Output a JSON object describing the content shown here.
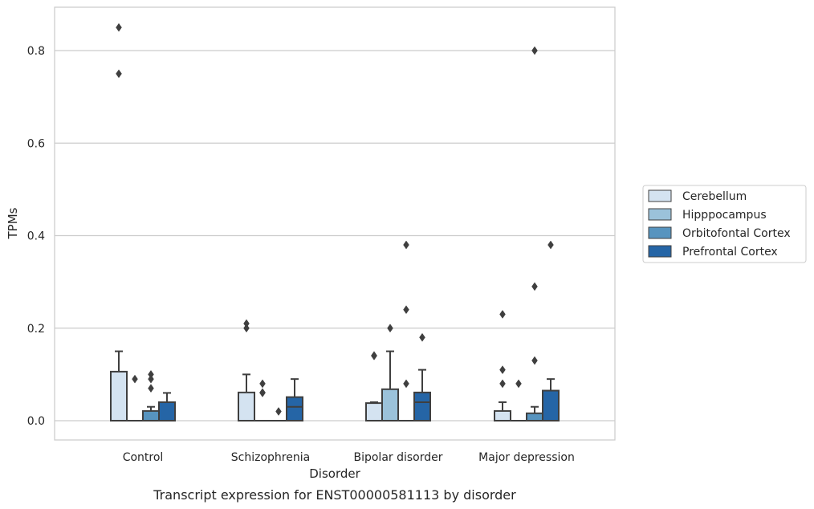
{
  "chart_data": {
    "type": "box",
    "title": "",
    "caption": "Transcript expression for ENST00000581113 by disorder",
    "xlabel": "Disorder",
    "ylabel": "TPMs",
    "ylim": [
      -0.04,
      0.895
    ],
    "yticks": [
      0.0,
      0.2,
      0.4,
      0.6,
      0.8
    ],
    "ytick_labels": [
      "0.0",
      "0.2",
      "0.4",
      "0.6",
      "0.8"
    ],
    "grid": true,
    "legend_position": "right",
    "categories": [
      "Control",
      "Schizophrenia",
      "Bipolar disorder",
      "Major depression"
    ],
    "series": [
      {
        "name": "Cerebellum",
        "color": "#d4e3f1",
        "boxes": [
          {
            "q1": 0.0,
            "median": 0.0,
            "q3": 0.106,
            "whisker_low": 0.0,
            "whisker_high": 0.15,
            "outliers": [
              0.85,
              0.75
            ]
          },
          {
            "q1": 0.0,
            "median": 0.0,
            "q3": 0.061,
            "whisker_low": 0.0,
            "whisker_high": 0.1,
            "outliers": [
              0.21,
              0.2
            ]
          },
          {
            "q1": 0.0,
            "median": 0.0,
            "q3": 0.038,
            "whisker_low": 0.0,
            "whisker_high": 0.04,
            "outliers": [
              0.14,
              0.141
            ]
          },
          {
            "q1": 0.0,
            "median": 0.0,
            "q3": 0.021,
            "whisker_low": 0.0,
            "whisker_high": 0.04,
            "outliers": [
              0.23,
              0.11,
              0.08
            ]
          }
        ]
      },
      {
        "name": "Hipppocampus",
        "color": "#9bc2da",
        "boxes": [
          {
            "q1": 0.0,
            "median": 0.0,
            "q3": 0.0,
            "whisker_low": 0.0,
            "whisker_high": 0.0,
            "outliers": [
              0.09
            ]
          },
          {
            "q1": 0.0,
            "median": 0.0,
            "q3": 0.0,
            "whisker_low": 0.0,
            "whisker_high": 0.0,
            "outliers": [
              0.08,
              0.06,
              0.061
            ]
          },
          {
            "q1": 0.0,
            "median": 0.0,
            "q3": 0.068,
            "whisker_low": 0.0,
            "whisker_high": 0.15,
            "outliers": [
              0.2
            ]
          },
          {
            "q1": 0.0,
            "median": 0.0,
            "q3": 0.0,
            "whisker_low": 0.0,
            "whisker_high": 0.0,
            "outliers": [
              0.08
            ]
          }
        ]
      },
      {
        "name": "Orbitofontal Cortex",
        "color": "#5794bf",
        "boxes": [
          {
            "q1": 0.0,
            "median": 0.0,
            "q3": 0.021,
            "whisker_low": 0.0,
            "whisker_high": 0.03,
            "outliers": [
              0.1,
              0.09,
              0.07
            ]
          },
          {
            "q1": 0.0,
            "median": 0.0,
            "q3": 0.0,
            "whisker_low": 0.0,
            "whisker_high": 0.0,
            "outliers": [
              0.02
            ]
          },
          {
            "q1": 0.0,
            "median": 0.0,
            "q3": 0.0,
            "whisker_low": 0.0,
            "whisker_high": 0.0,
            "outliers": [
              0.38,
              0.24,
              0.08
            ]
          },
          {
            "q1": 0.0,
            "median": 0.0,
            "q3": 0.016,
            "whisker_low": 0.0,
            "whisker_high": 0.03,
            "outliers": [
              0.8,
              0.29,
              0.13
            ]
          }
        ]
      },
      {
        "name": "Prefrontal Cortex",
        "color": "#2565a6",
        "boxes": [
          {
            "q1": 0.0,
            "median": 0.0,
            "q3": 0.04,
            "whisker_low": 0.0,
            "whisker_high": 0.06,
            "outliers": []
          },
          {
            "q1": 0.0,
            "median": 0.03,
            "q3": 0.051,
            "whisker_low": 0.0,
            "whisker_high": 0.09,
            "outliers": []
          },
          {
            "q1": 0.0,
            "median": 0.04,
            "q3": 0.061,
            "whisker_low": 0.0,
            "whisker_high": 0.11,
            "outliers": [
              0.18
            ]
          },
          {
            "q1": 0.0,
            "median": 0.0,
            "q3": 0.065,
            "whisker_low": 0.0,
            "whisker_high": 0.09,
            "outliers": [
              0.38
            ]
          }
        ]
      }
    ]
  }
}
